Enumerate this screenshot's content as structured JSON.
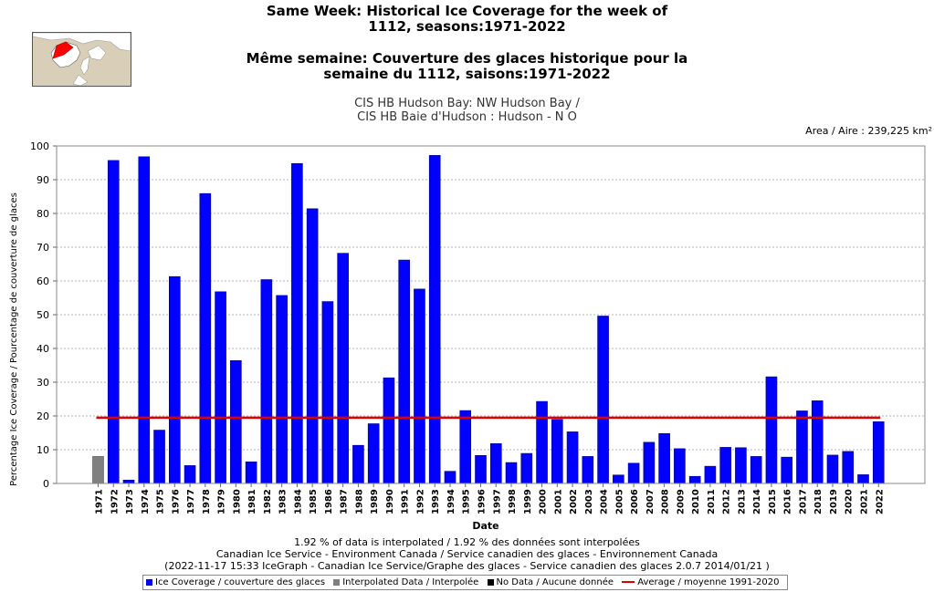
{
  "header": {
    "title_en_line1": "Same Week: Historical Ice Coverage for the week of",
    "title_en_line2": "1112, seasons:1971-2022",
    "title_fr_line1": "Même semaine: Couverture des glaces historique pour la",
    "title_fr_line2": "semaine du 1112, saisons:1971-2022",
    "region_en": "CIS HB Hudson Bay: NW Hudson Bay /",
    "region_fr": "CIS HB Baie d'Hudson : Hudson - N O",
    "area": "Area / Aire : 239,225 km²"
  },
  "footer": {
    "interp_note": "1.92 % of data is interpolated / 1.92 % des données sont interpolées",
    "credit": "Canadian Ice Service - Environment Canada / Service canadien des glaces - Environnement Canada",
    "version": "(2022-11-17 15:33 IceGraph - Canadian Ice Service/Graphe des glaces - Service canadien des glaces 2.0.7 2014/01/21 )"
  },
  "legend": {
    "ice": "Ice Coverage / couverture des glaces",
    "interp": "Interpolated Data / Interpolée",
    "nodata": "No Data / Aucune donnée",
    "average": "Average / moyenne 1991-2020"
  },
  "colors": {
    "bar": "#0000ff",
    "interpolated": "#808080",
    "nodata": "#000000",
    "average": "#e00000"
  },
  "chart_data": {
    "type": "bar",
    "xlabel": "Date",
    "ylabel": "Percentage Ice Coverage / Pourcentage de couverture de glaces",
    "ylim": [
      0,
      100
    ],
    "yticks": [
      0,
      10,
      20,
      30,
      40,
      50,
      60,
      70,
      80,
      90,
      100
    ],
    "grid": true,
    "legend_position": "bottom",
    "categories": [
      "1971",
      "1972",
      "1973",
      "1974",
      "1975",
      "1976",
      "1977",
      "1978",
      "1979",
      "1980",
      "1981",
      "1982",
      "1983",
      "1984",
      "1985",
      "1986",
      "1987",
      "1988",
      "1989",
      "1990",
      "1991",
      "1992",
      "1993",
      "1994",
      "1995",
      "1996",
      "1997",
      "1998",
      "1999",
      "2000",
      "2001",
      "2002",
      "2003",
      "2004",
      "2005",
      "2006",
      "2007",
      "2008",
      "2009",
      "2010",
      "2011",
      "2012",
      "2013",
      "2014",
      "2015",
      "2016",
      "2017",
      "2018",
      "2019",
      "2020",
      "2021",
      "2022"
    ],
    "values": [
      8.0,
      95.7,
      1.0,
      96.8,
      15.8,
      61.3,
      5.3,
      85.9,
      56.8,
      36.4,
      6.4,
      60.4,
      55.7,
      94.8,
      81.4,
      53.9,
      68.2,
      11.3,
      17.7,
      31.3,
      66.2,
      57.6,
      97.2,
      3.6,
      21.6,
      8.3,
      11.8,
      6.2,
      8.9,
      24.3,
      19.0,
      15.3,
      8.0,
      49.6,
      2.5,
      6.0,
      12.2,
      14.8,
      10.3,
      2.1,
      5.1,
      10.7,
      10.6,
      8.0,
      31.6,
      7.8,
      21.5,
      24.5,
      8.4,
      9.5,
      2.6,
      18.3
    ],
    "interpolated": [
      "1971"
    ],
    "average": 19.5
  }
}
